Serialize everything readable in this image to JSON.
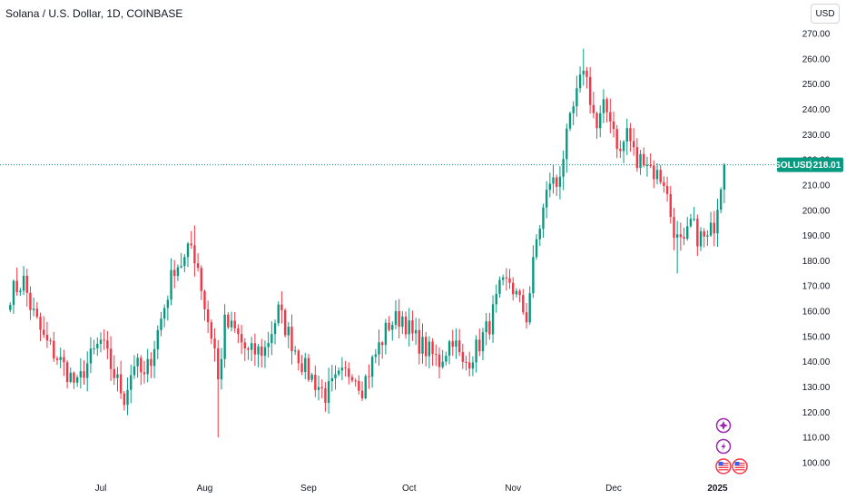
{
  "header": {
    "title": "Solana / U.S. Dollar, 1D, COINBASE",
    "currency": "USD"
  },
  "colors": {
    "up": "#089981",
    "down": "#f23645",
    "last_price_line": "#089981",
    "event_icon": "#9c27b0"
  },
  "icons": [
    "spark-event-icon",
    "lightning-event-icon",
    "us-flag-icon",
    "us-flag-icon"
  ],
  "chart_data": {
    "type": "candlestick",
    "symbol": "SOLUSD",
    "last_price": 218.01,
    "last_price_label": "218.01",
    "y_ticks": [
      100,
      110,
      120,
      130,
      140,
      150,
      160,
      170,
      180,
      190,
      200,
      210,
      220,
      230,
      240,
      250,
      260,
      270
    ],
    "y_tick_labels": [
      "100.00",
      "110.00",
      "120.00",
      "130.00",
      "140.00",
      "150.00",
      "160.00",
      "170.00",
      "180.00",
      "190.00",
      "200.00",
      "210.00",
      "220.00",
      "230.00",
      "240.00",
      "250.00",
      "260.00",
      "270.00"
    ],
    "ylim": [
      97,
      275
    ],
    "x_ticks": [
      {
        "label": "Jul",
        "date": "2024-07-01",
        "bold": false
      },
      {
        "label": "Aug",
        "date": "2024-08-01",
        "bold": false
      },
      {
        "label": "Sep",
        "date": "2024-09-01",
        "bold": false
      },
      {
        "label": "Oct",
        "date": "2024-10-01",
        "bold": false
      },
      {
        "label": "Nov",
        "date": "2024-11-01",
        "bold": false
      },
      {
        "label": "Dec",
        "date": "2024-12-01",
        "bold": false
      },
      {
        "label": "2025",
        "date": "2025-01-01",
        "bold": true
      }
    ],
    "x_start": "2024-06-04",
    "close_path": [
      [
        "2024-06-04",
        167
      ],
      [
        "2024-06-08",
        172
      ],
      [
        "2024-06-10",
        162
      ],
      [
        "2024-06-14",
        149
      ],
      [
        "2024-06-19",
        140
      ],
      [
        "2024-06-24",
        130
      ],
      [
        "2024-06-26",
        137
      ],
      [
        "2024-07-01",
        148
      ],
      [
        "2024-07-05",
        135
      ],
      [
        "2024-07-08",
        126
      ],
      [
        "2024-07-11",
        140
      ],
      [
        "2024-07-14",
        133
      ],
      [
        "2024-07-17",
        147
      ],
      [
        "2024-07-20",
        162
      ],
      [
        "2024-07-23",
        178
      ],
      [
        "2024-07-26",
        180
      ],
      [
        "2024-07-28",
        186
      ],
      [
        "2024-07-30",
        178
      ],
      [
        "2024-08-01",
        162
      ],
      [
        "2024-08-04",
        145
      ],
      [
        "2024-08-05",
        132
      ],
      [
        "2024-08-07",
        155
      ],
      [
        "2024-08-10",
        152
      ],
      [
        "2024-08-14",
        143
      ],
      [
        "2024-08-19",
        145
      ],
      [
        "2024-08-23",
        160
      ],
      [
        "2024-08-27",
        148
      ],
      [
        "2024-08-31",
        137
      ],
      [
        "2024-09-03",
        132
      ],
      [
        "2024-09-06",
        127
      ],
      [
        "2024-09-10",
        133
      ],
      [
        "2024-09-14",
        137
      ],
      [
        "2024-09-17",
        130
      ],
      [
        "2024-09-21",
        143
      ],
      [
        "2024-09-25",
        155
      ],
      [
        "2024-09-29",
        158
      ],
      [
        "2024-10-02",
        150
      ],
      [
        "2024-10-06",
        145
      ],
      [
        "2024-10-10",
        140
      ],
      [
        "2024-10-14",
        150
      ],
      [
        "2024-10-17",
        138
      ],
      [
        "2024-10-21",
        145
      ],
      [
        "2024-10-25",
        155
      ],
      [
        "2024-10-28",
        168
      ],
      [
        "2024-10-31",
        172
      ],
      [
        "2024-11-03",
        163
      ],
      [
        "2024-11-05",
        158
      ],
      [
        "2024-11-06",
        168
      ],
      [
        "2024-11-08",
        188
      ],
      [
        "2024-11-10",
        200
      ],
      [
        "2024-11-12",
        212
      ],
      [
        "2024-11-14",
        210
      ],
      [
        "2024-11-16",
        222
      ],
      [
        "2024-11-19",
        240
      ],
      [
        "2024-11-21",
        250
      ],
      [
        "2024-11-22",
        258
      ],
      [
        "2024-11-24",
        245
      ],
      [
        "2024-11-26",
        232
      ],
      [
        "2024-11-28",
        240
      ],
      [
        "2024-11-30",
        238
      ],
      [
        "2024-12-03",
        222
      ],
      [
        "2024-12-05",
        232
      ],
      [
        "2024-12-08",
        218
      ],
      [
        "2024-12-10",
        222
      ],
      [
        "2024-12-13",
        215
      ],
      [
        "2024-12-16",
        212
      ],
      [
        "2024-12-18",
        198
      ],
      [
        "2024-12-20",
        188
      ],
      [
        "2024-12-22",
        185
      ],
      [
        "2024-12-24",
        195
      ],
      [
        "2024-12-26",
        190
      ],
      [
        "2024-12-29",
        188
      ],
      [
        "2024-12-31",
        195
      ],
      [
        "2025-01-02",
        212
      ],
      [
        "2025-01-03",
        218
      ]
    ],
    "extremes": [
      {
        "date": "2024-08-05",
        "low": 110
      },
      {
        "date": "2024-07-29",
        "high": 194
      },
      {
        "date": "2024-11-22",
        "high": 264
      },
      {
        "date": "2024-12-20",
        "low": 175
      }
    ]
  }
}
